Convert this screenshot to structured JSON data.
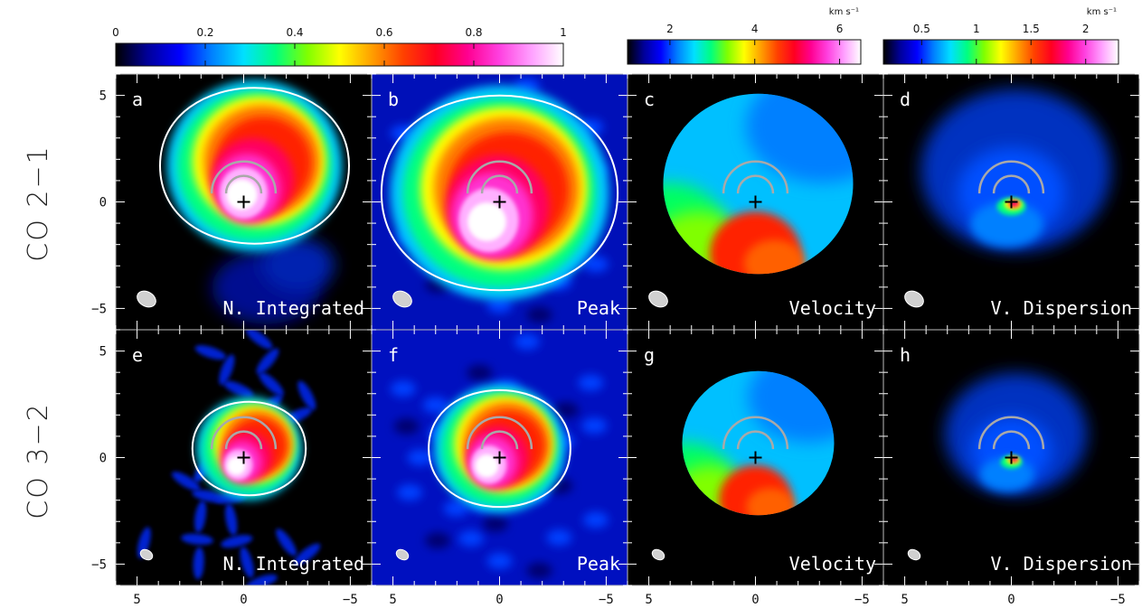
{
  "chart_data": {
    "type": "heatmap",
    "title": "",
    "rows": [
      {
        "label": "CO 2−1",
        "panels": [
          "a",
          "b",
          "c",
          "d"
        ]
      },
      {
        "label": "CO 3−2",
        "panels": [
          "e",
          "f",
          "g",
          "h"
        ]
      }
    ],
    "panels": [
      {
        "letter": "a",
        "name": "N. Integrated",
        "quantity": "normalized"
      },
      {
        "letter": "b",
        "name": "Peak",
        "quantity": "normalized"
      },
      {
        "letter": "c",
        "name": "Velocity",
        "quantity": "velocity"
      },
      {
        "letter": "d",
        "name": "V. Dispersion",
        "quantity": "dispersion"
      },
      {
        "letter": "e",
        "name": "N. Integrated",
        "quantity": "normalized"
      },
      {
        "letter": "f",
        "name": "Peak",
        "quantity": "normalized"
      },
      {
        "letter": "g",
        "name": "Velocity",
        "quantity": "velocity"
      },
      {
        "letter": "h",
        "name": "V. Dispersion",
        "quantity": "dispersion"
      }
    ],
    "axes": {
      "x_range": [
        6,
        -6
      ],
      "y_range": [
        -6,
        6
      ],
      "x_ticks": [
        {
          "v": 5,
          "label": "5"
        },
        {
          "v": 0,
          "label": "0"
        },
        {
          "v": -5,
          "label": "−5"
        }
      ],
      "y_ticks": [
        {
          "v": 5,
          "label": "5"
        },
        {
          "v": 0,
          "label": "0"
        },
        {
          "v": -5,
          "label": "−5"
        }
      ]
    },
    "colorbars": [
      {
        "id": "normalized",
        "range": [
          0,
          1
        ],
        "ticks": [
          {
            "v": 0,
            "label": "0"
          },
          {
            "v": 0.2,
            "label": "0.2"
          },
          {
            "v": 0.4,
            "label": "0.4"
          },
          {
            "v": 0.6,
            "label": "0.6"
          },
          {
            "v": 0.8,
            "label": "0.8"
          },
          {
            "v": 1,
            "label": "1"
          }
        ],
        "unit": ""
      },
      {
        "id": "velocity",
        "range": [
          1,
          6.5
        ],
        "ticks": [
          {
            "v": 2,
            "label": "2"
          },
          {
            "v": 4,
            "label": "4"
          },
          {
            "v": 6,
            "label": "6"
          }
        ],
        "unit": "km s⁻¹"
      },
      {
        "id": "dispersion",
        "range": [
          0.15,
          2.3
        ],
        "ticks": [
          {
            "v": 0.5,
            "label": "0.5"
          },
          {
            "v": 1,
            "label": "1"
          },
          {
            "v": 1.5,
            "label": "1.5"
          },
          {
            "v": 2,
            "label": "2"
          }
        ],
        "unit": "km s⁻¹"
      }
    ]
  },
  "colors": {
    "colormap": [
      "#000000",
      "#00009a",
      "#0000ff",
      "#0080ff",
      "#00e0ff",
      "#00ff80",
      "#80ff00",
      "#ffff00",
      "#ffa000",
      "#ff4000",
      "#ff0020",
      "#ff0090",
      "#ff40e0",
      "#ffa0ff",
      "#ffffff"
    ],
    "contour": "#ffffff",
    "arc": "#a9a9a9",
    "marker": "#000000"
  }
}
